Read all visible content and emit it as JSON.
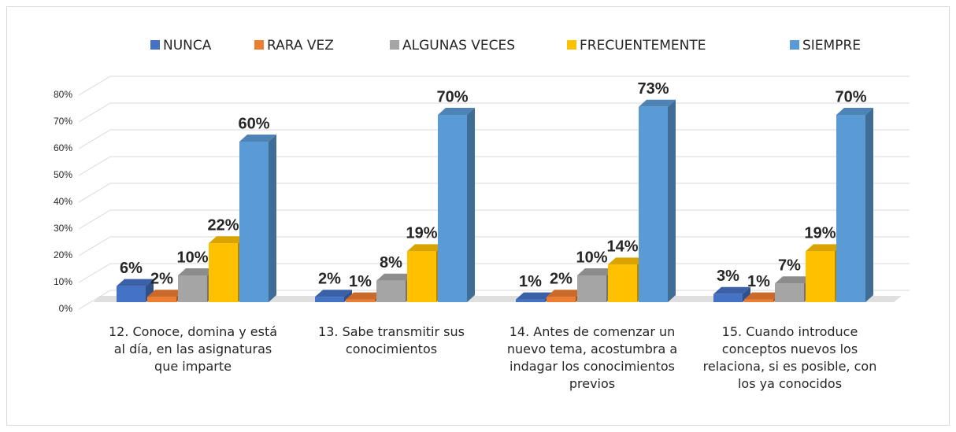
{
  "chart_data": {
    "type": "bar3d",
    "categories": [
      "12. Conoce, domina y está al día, en las asignaturas que imparte",
      "13. Sabe transmitir sus conocimientos",
      "14. Antes de comenzar un nuevo tema, acostumbra a indagar los conocimientos previos",
      "15. Cuando introduce conceptos nuevos los relaciona, si es posible, con los ya conocidos"
    ],
    "series": [
      {
        "name": "NUNCA",
        "color": "#4472c4",
        "values": [
          6,
          2,
          1,
          3
        ],
        "value_labels": [
          "6%",
          "2%",
          "1%",
          "3%"
        ]
      },
      {
        "name": "RARA VEZ",
        "color": "#ed7d31",
        "values": [
          2,
          1,
          2,
          1
        ],
        "value_labels": [
          "2%",
          "1%",
          "2%",
          "1%"
        ]
      },
      {
        "name": "ALGUNAS VECES",
        "color": "#a5a5a5",
        "values": [
          10,
          8,
          10,
          7
        ],
        "value_labels": [
          "10%",
          "8%",
          "10%",
          "7%"
        ]
      },
      {
        "name": "FRECUENTEMENTE",
        "color": "#ffc000",
        "values": [
          22,
          19,
          14,
          19
        ],
        "value_labels": [
          "22%",
          "19%",
          "14%",
          "19%"
        ]
      },
      {
        "name": "SIEMPRE",
        "color": "#5b9bd5",
        "values": [
          60,
          70,
          73,
          70
        ],
        "value_labels": [
          "60%",
          "70%",
          "73%",
          "70%"
        ]
      }
    ],
    "ylim": [
      0,
      80
    ],
    "yticks": [
      {
        "value": 0,
        "label": "0%"
      },
      {
        "value": 10,
        "label": "10%"
      },
      {
        "value": 20,
        "label": "20%"
      },
      {
        "value": 30,
        "label": "30%"
      },
      {
        "value": 40,
        "label": "40%"
      },
      {
        "value": 50,
        "label": "50%"
      },
      {
        "value": 60,
        "label": "60%"
      },
      {
        "value": 70,
        "label": "70%"
      },
      {
        "value": 80,
        "label": "80%"
      }
    ],
    "grid": true,
    "legend": "top"
  }
}
